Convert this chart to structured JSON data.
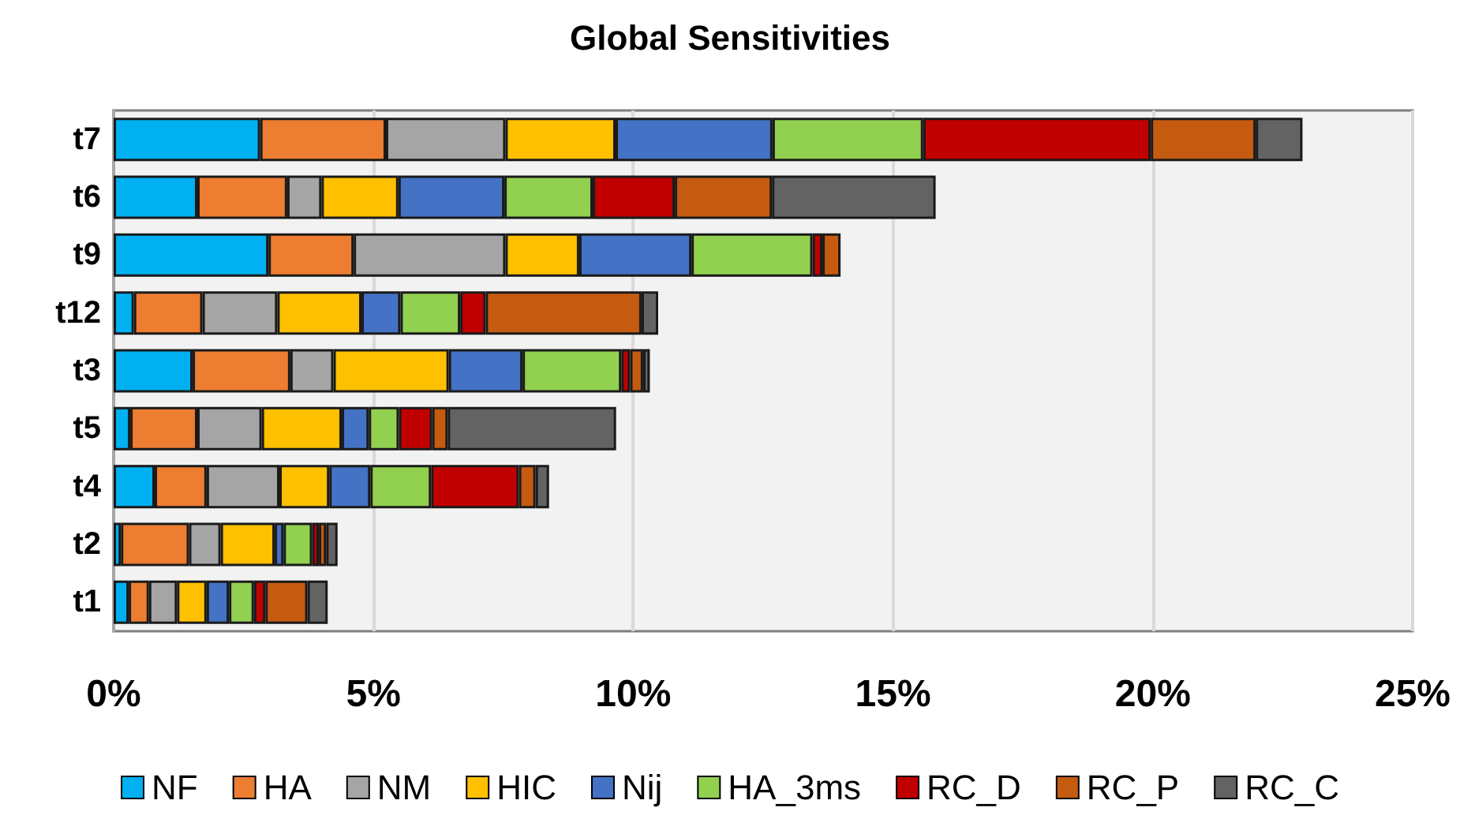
{
  "chart_data": {
    "type": "bar",
    "title": "Global Sensitivities",
    "orientation": "horizontal",
    "stacked": true,
    "categories": [
      "t7",
      "t6",
      "t9",
      "t12",
      "t3",
      "t5",
      "t4",
      "t2",
      "t1"
    ],
    "series": [
      {
        "name": "NF",
        "color": "#00b0f0",
        "values": [
          2.82,
          1.61,
          2.98,
          0.39,
          1.52,
          0.32,
          0.79,
          0.14,
          0.29
        ]
      },
      {
        "name": "HA",
        "color": "#ed7d31",
        "values": [
          2.42,
          1.73,
          1.64,
          1.32,
          1.88,
          1.29,
          1.0,
          1.31,
          0.39
        ]
      },
      {
        "name": "NM",
        "color": "#a5a5a5",
        "values": [
          2.3,
          0.66,
          2.92,
          1.44,
          0.83,
          1.24,
          1.4,
          0.61,
          0.54
        ]
      },
      {
        "name": "HIC",
        "color": "#ffc000",
        "values": [
          2.12,
          1.48,
          1.42,
          1.62,
          2.22,
          1.54,
          0.96,
          1.04,
          0.57
        ]
      },
      {
        "name": "Nij",
        "color": "#4472c4",
        "values": [
          3.02,
          2.04,
          2.16,
          0.75,
          1.42,
          0.52,
          0.79,
          0.17,
          0.43
        ]
      },
      {
        "name": "HA_3ms",
        "color": "#92d050",
        "values": [
          2.9,
          1.7,
          2.33,
          1.15,
          1.9,
          0.58,
          1.17,
          0.55,
          0.48
        ]
      },
      {
        "name": "RC_D",
        "color": "#c00000",
        "values": [
          4.38,
          1.58,
          0.19,
          0.49,
          0.17,
          0.64,
          1.69,
          0.13,
          0.22
        ]
      },
      {
        "name": "RC_P",
        "color": "#c55a11",
        "values": [
          2.02,
          1.87,
          0.35,
          3.0,
          0.25,
          0.3,
          0.32,
          0.14,
          0.81
        ]
      },
      {
        "name": "RC_C",
        "color": "#636363",
        "values": [
          0.9,
          3.15,
          null,
          0.32,
          0.13,
          3.24,
          0.26,
          0.22,
          0.39
        ]
      }
    ],
    "xlim": [
      0,
      25
    ],
    "xticks": [
      {
        "value": 0,
        "label": "0%"
      },
      {
        "value": 5,
        "label": "5%"
      },
      {
        "value": 10,
        "label": "10%"
      },
      {
        "value": 15,
        "label": "15%"
      },
      {
        "value": 20,
        "label": "20%"
      },
      {
        "value": 25,
        "label": "25%"
      }
    ],
    "grid": "x",
    "legend": "bottom"
  }
}
